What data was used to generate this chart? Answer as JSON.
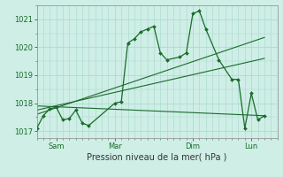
{
  "xlabel": "Pression niveau de la mer( hPa )",
  "ylim": [
    1016.75,
    1021.5
  ],
  "yticks": [
    1017,
    1018,
    1019,
    1020,
    1021
  ],
  "background_color": "#ceeee6",
  "grid_color": "#a8d8cc",
  "line_color": "#1a6b2a",
  "x_tick_labels": [
    "Sam",
    "Mar",
    "Dim",
    "Lun"
  ],
  "x_tick_positions": [
    12,
    48,
    96,
    132
  ],
  "xlim": [
    0,
    148
  ],
  "series1_x": [
    0,
    4,
    8,
    12,
    16,
    20,
    24,
    28,
    32,
    48,
    52,
    56,
    60,
    64,
    68,
    72,
    76,
    80,
    88,
    92,
    96,
    100,
    104,
    112,
    120,
    124,
    128,
    132,
    136,
    140
  ],
  "series1_y": [
    1017.1,
    1017.55,
    1017.8,
    1017.85,
    1017.4,
    1017.45,
    1017.75,
    1017.28,
    1017.2,
    1018.0,
    1018.05,
    1020.15,
    1020.3,
    1020.55,
    1020.65,
    1020.75,
    1019.8,
    1019.55,
    1019.65,
    1019.8,
    1021.2,
    1021.3,
    1020.65,
    1019.55,
    1018.85,
    1018.85,
    1017.1,
    1018.35,
    1017.4,
    1017.55
  ],
  "series2_x": [
    0,
    140
  ],
  "series2_y": [
    1017.6,
    1020.35
  ],
  "series3_x": [
    0,
    140
  ],
  "series3_y": [
    1017.75,
    1019.6
  ],
  "series4_x": [
    0,
    140
  ],
  "series4_y": [
    1017.9,
    1017.55
  ],
  "ytick_fontsize": 6,
  "xtick_fontsize": 6,
  "xlabel_fontsize": 7
}
